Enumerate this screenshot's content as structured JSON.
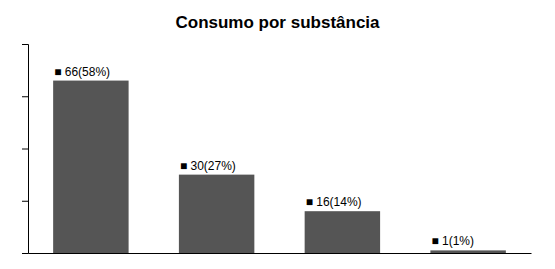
{
  "chart_data": {
    "type": "bar",
    "title": "Consumo por substância",
    "categories": [
      null,
      null,
      null,
      null
    ],
    "values": [
      66,
      30,
      16,
      1
    ],
    "value_labels": [
      "■ 66(58%)",
      "■ 30(27%)",
      "■ 16(14%)",
      "■ 1(1%)"
    ],
    "data_labels": true,
    "color": "#555555",
    "ylim": [
      0,
      80
    ],
    "yticks": [
      0,
      20,
      40,
      60,
      80
    ],
    "tick_labels": false
  }
}
